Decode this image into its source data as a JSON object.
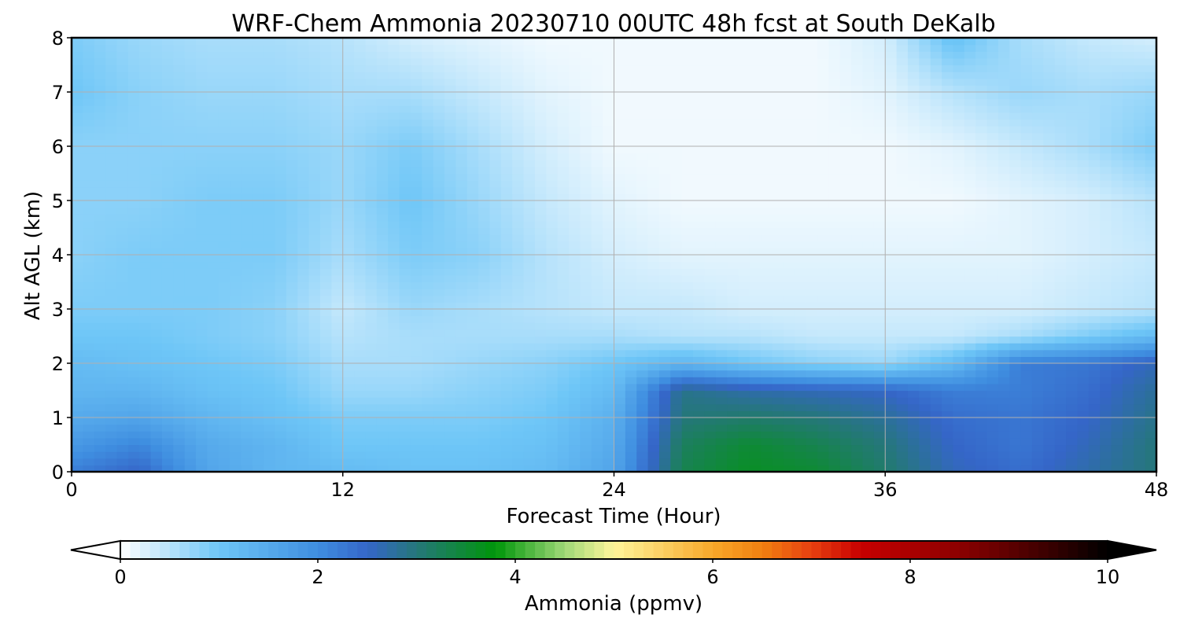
{
  "chart_data": {
    "type": "heatmap",
    "title": "WRF-Chem Ammonia  20230710 00UTC 48h fcst at South DeKalb",
    "xlabel": "Forecast Time (Hour)",
    "ylabel": "Alt AGL (km)",
    "xlim": [
      0,
      48
    ],
    "ylim": [
      0,
      8
    ],
    "x_ticks": [
      0,
      12,
      24,
      36,
      48
    ],
    "y_ticks": [
      0,
      1,
      2,
      3,
      4,
      5,
      6,
      7,
      8
    ],
    "grid": true,
    "x": [
      0,
      3,
      6,
      9,
      12,
      15,
      18,
      21,
      24,
      27,
      30,
      33,
      36,
      39,
      42,
      45,
      48
    ],
    "y": [
      0,
      0.5,
      1,
      1.5,
      2,
      2.5,
      3,
      4,
      5,
      6,
      7,
      8
    ],
    "z": [
      [
        2.2,
        2.5,
        1.6,
        1.3,
        1.2,
        1.1,
        1.1,
        1.2,
        1.6,
        3.3,
        3.6,
        3.5,
        3.1,
        2.6,
        2.4,
        2.7,
        3.0
      ],
      [
        1.8,
        2.1,
        1.5,
        1.3,
        1.0,
        1.0,
        1.0,
        1.1,
        1.5,
        3.2,
        3.5,
        3.3,
        3.0,
        2.5,
        2.3,
        2.6,
        3.0
      ],
      [
        1.5,
        1.6,
        1.3,
        1.1,
        0.9,
        0.9,
        0.9,
        1.0,
        1.4,
        3.0,
        3.1,
        3.0,
        2.8,
        2.4,
        2.3,
        2.5,
        2.9
      ],
      [
        1.3,
        1.3,
        1.1,
        1.0,
        0.7,
        0.7,
        0.8,
        0.9,
        1.2,
        2.9,
        2.7,
        2.6,
        2.5,
        2.2,
        2.2,
        2.4,
        2.8
      ],
      [
        1.2,
        1.1,
        1.0,
        0.9,
        0.6,
        0.6,
        0.7,
        0.8,
        1.0,
        1.3,
        1.0,
        0.8,
        0.7,
        1.2,
        2.2,
        2.3,
        2.6
      ],
      [
        1.0,
        1.0,
        0.9,
        0.8,
        0.5,
        0.6,
        0.6,
        0.6,
        0.6,
        0.5,
        0.5,
        0.4,
        0.4,
        0.4,
        0.6,
        0.9,
        1.2
      ],
      [
        0.9,
        0.9,
        0.9,
        0.8,
        0.4,
        0.7,
        0.6,
        0.5,
        0.4,
        0.4,
        0.3,
        0.3,
        0.3,
        0.3,
        0.3,
        0.4,
        0.5
      ],
      [
        0.8,
        0.9,
        0.9,
        0.9,
        0.6,
        0.9,
        0.8,
        0.5,
        0.3,
        0.2,
        0.2,
        0.2,
        0.2,
        0.2,
        0.2,
        0.3,
        0.4
      ],
      [
        0.8,
        0.8,
        0.9,
        0.9,
        0.7,
        1.0,
        0.7,
        0.4,
        0.2,
        0.1,
        0.1,
        0.1,
        0.1,
        0.1,
        0.2,
        0.3,
        0.5
      ],
      [
        0.8,
        0.8,
        0.8,
        0.8,
        0.7,
        0.9,
        0.6,
        0.3,
        0.1,
        0.1,
        0.1,
        0.1,
        0.1,
        0.2,
        0.4,
        0.6,
        0.9
      ],
      [
        1.0,
        0.8,
        0.7,
        0.7,
        0.6,
        0.6,
        0.4,
        0.2,
        0.1,
        0.1,
        0.1,
        0.1,
        0.2,
        0.5,
        0.7,
        0.6,
        0.7
      ],
      [
        0.9,
        0.7,
        0.6,
        0.6,
        0.5,
        0.3,
        0.2,
        0.1,
        0.1,
        0.1,
        0.1,
        0.1,
        0.3,
        1.1,
        0.6,
        0.4,
        0.3
      ]
    ],
    "colorbar": {
      "label": "Ammonia  (ppmv)",
      "min": 0,
      "max": 10,
      "ticks": [
        0,
        2,
        4,
        6,
        8,
        10
      ],
      "extend": "both",
      "color_stops": [
        {
          "value": 0,
          "color": "#ffffff"
        },
        {
          "value": 1,
          "color": "#6ec6f7"
        },
        {
          "value": 2,
          "color": "#3f8ee0"
        },
        {
          "value": 2.5,
          "color": "#3566c8"
        },
        {
          "value": 3,
          "color": "#25777a"
        },
        {
          "value": 3.8,
          "color": "#00960a"
        },
        {
          "value": 4.5,
          "color": "#9fd878"
        },
        {
          "value": 5,
          "color": "#fff59a"
        },
        {
          "value": 6,
          "color": "#f8a82a"
        },
        {
          "value": 6.5,
          "color": "#f08010"
        },
        {
          "value": 7,
          "color": "#e84010"
        },
        {
          "value": 7.5,
          "color": "#c80000"
        },
        {
          "value": 8.5,
          "color": "#8c0000"
        },
        {
          "value": 9.5,
          "color": "#300000"
        },
        {
          "value": 10,
          "color": "#000000"
        }
      ]
    }
  }
}
